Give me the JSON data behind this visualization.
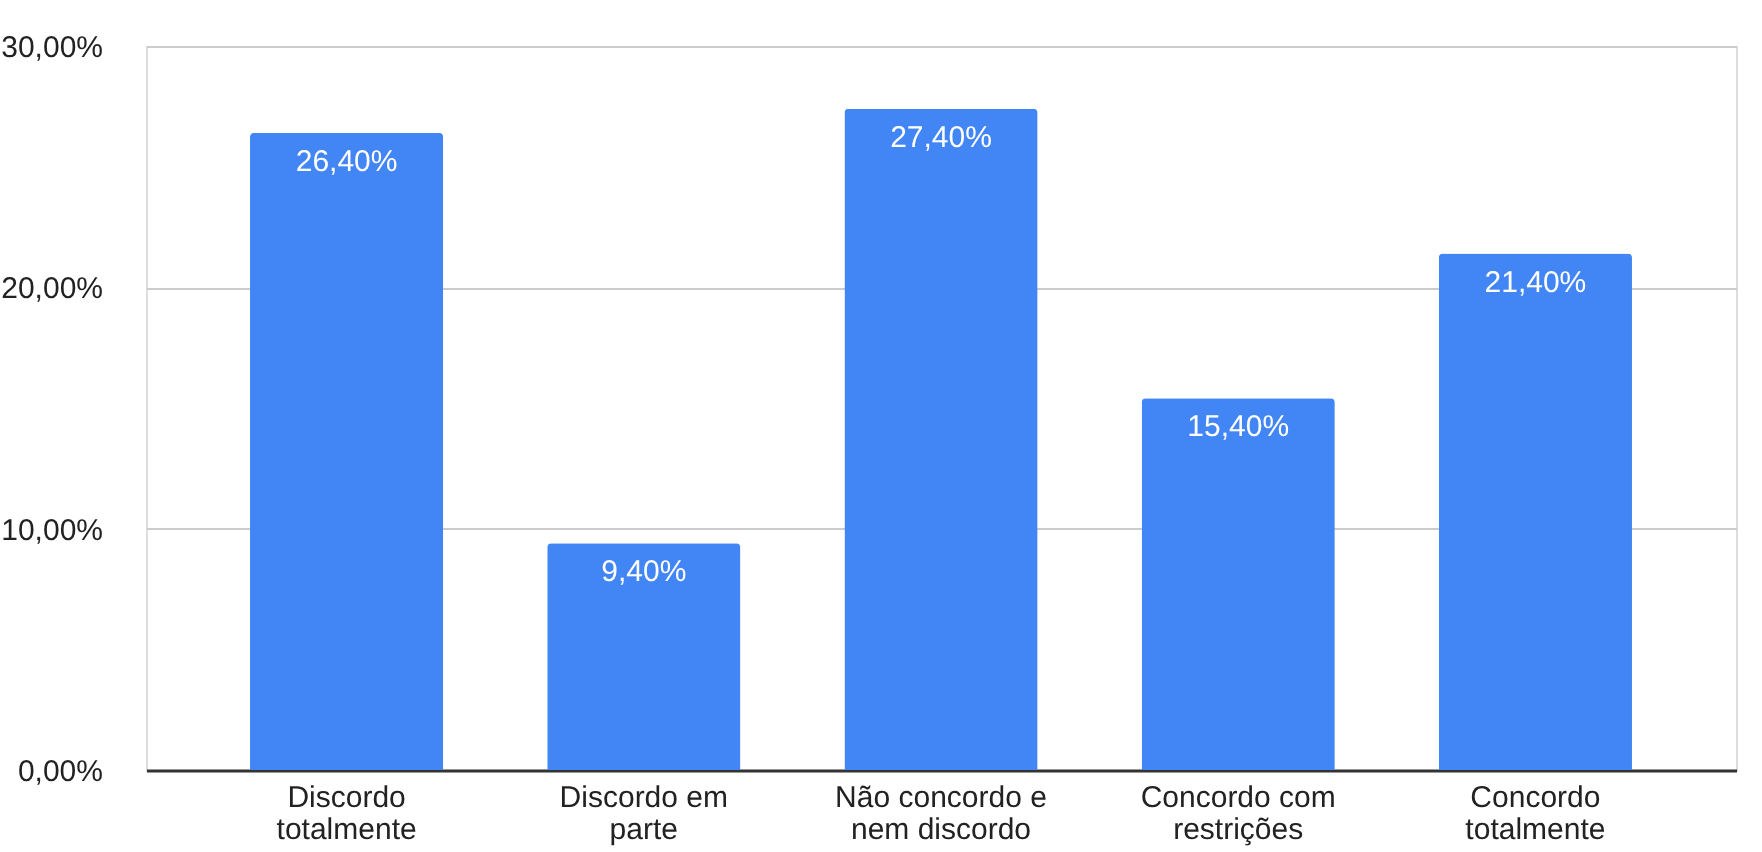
{
  "chart_data": {
    "type": "bar",
    "categories": [
      "Discordo totalmente",
      "Discordo em parte",
      "Não concordo e nem discordo",
      "Concordo com restrições",
      "Concordo totalmente"
    ],
    "values": [
      26.4,
      9.4,
      27.4,
      15.4,
      21.4
    ],
    "value_labels": [
      "26,40%",
      "9,40%",
      "27,40%",
      "15,40%",
      "21,40%"
    ],
    "color": "#4285f4",
    "ylim": [
      0,
      30
    ],
    "yticks": [
      {
        "value": 0,
        "label": "0,00%"
      },
      {
        "value": 10,
        "label": "10,00%"
      },
      {
        "value": 20,
        "label": "20,00%"
      },
      {
        "value": 30,
        "label": "30,00%"
      }
    ],
    "grid": "y"
  }
}
